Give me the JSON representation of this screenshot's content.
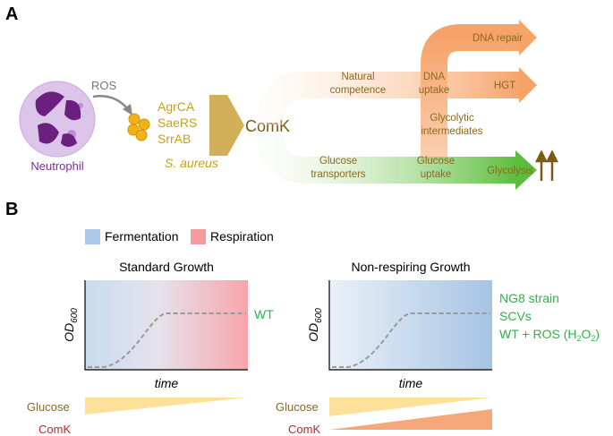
{
  "panel_a": {
    "label": "A",
    "ros": "ROS",
    "cell": "Neutrophil",
    "regulators": [
      "AgrCA",
      "SaeRS",
      "SrrAB"
    ],
    "organism": "S. aureus",
    "comk": "ComK",
    "natural_competence": [
      "Natural",
      "competence"
    ],
    "dna_uptake": [
      "DNA",
      "uptake"
    ],
    "dna_repair": "DNA repair",
    "hgt": "HGT",
    "glycolytic_intermediates": [
      "Glycolytic",
      "intermediates"
    ],
    "glucose_transporters": [
      "Glucose",
      "transporters"
    ],
    "glucose_uptake": [
      "Glucose",
      "uptake"
    ],
    "glycolysis": "Glycolysis"
  },
  "panel_b": {
    "label": "B",
    "legend": [
      "Fermentation",
      "Respiration"
    ],
    "plots": [
      {
        "title": "Standard Growth",
        "y_label": {
          "main": "OD",
          "sub": "600"
        },
        "x_label": "time",
        "strains": [
          [
            "WT"
          ]
        ],
        "rows": [
          "Glucose",
          "ComK"
        ]
      },
      {
        "title": "Non-respiring Growth",
        "y_label": {
          "main": "OD",
          "sub": "600"
        },
        "x_label": "time",
        "strains": [
          [
            "NG8 strain"
          ],
          [
            "SCVs"
          ],
          [
            "WT + ROS (H",
            "2",
            "O",
            "2",
            ")"
          ]
        ],
        "rows": [
          "Glucose",
          "ComK"
        ]
      }
    ]
  }
}
